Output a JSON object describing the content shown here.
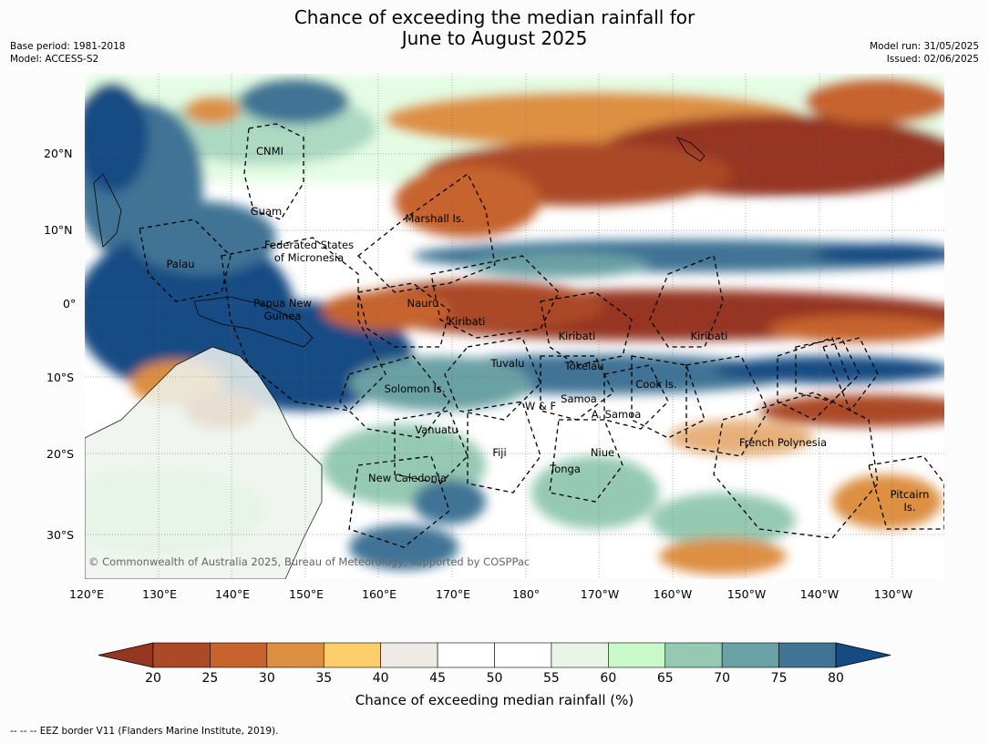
{
  "title_line1": "Chance of exceeding the median rainfall for",
  "title_line2": "June to August 2025",
  "meta_left": [
    "Base period: 1981-2018",
    "Model: ACCESS-S2"
  ],
  "meta_right": [
    "Model run: 31/05/2025",
    "Issued: 02/06/2025"
  ],
  "lat_labels": [
    "20°N",
    "10°N",
    "0°",
    "10°S",
    "20°S",
    "30°S"
  ],
  "lon_labels": [
    "120°E",
    "130°E",
    "140°E",
    "150°E",
    "160°E",
    "170°E",
    "180°",
    "170°W",
    "160°W",
    "150°W",
    "140°W",
    "130°W"
  ],
  "regions": [
    {
      "name": "CNMI"
    },
    {
      "name": "Guam"
    },
    {
      "name": "Marshall Is."
    },
    {
      "name": "Federated States"
    },
    {
      "name": "of Micronesia"
    },
    {
      "name": "Palau"
    },
    {
      "name": "Papua New"
    },
    {
      "name": "Guinea"
    },
    {
      "name": "Nauru"
    },
    {
      "name": "Kiribati"
    },
    {
      "name": "Kiribati"
    },
    {
      "name": "Kiribati"
    },
    {
      "name": "Tuvalu"
    },
    {
      "name": "Tokelau"
    },
    {
      "name": "Solomon Is."
    },
    {
      "name": "Samoa"
    },
    {
      "name": "W & F"
    },
    {
      "name": "A. Samoa"
    },
    {
      "name": "Cook Is."
    },
    {
      "name": "Vanuatu"
    },
    {
      "name": "Fiji"
    },
    {
      "name": "Niue"
    },
    {
      "name": "French Polynesia"
    },
    {
      "name": "Tonga"
    },
    {
      "name": "New Caledonia"
    },
    {
      "name": "Pitcairn"
    },
    {
      "name": "Is."
    }
  ],
  "copyright": "© Commonwealth of Australia 2025, Bureau of Meteorology, supported by COSPPac",
  "colorbar": {
    "label": "Chance of exceeding median rainfall (%)",
    "ticks": [
      "20",
      "25",
      "30",
      "35",
      "40",
      "45",
      "50",
      "55",
      "60",
      "65",
      "70",
      "75",
      "80"
    ],
    "colors": [
      "#ab4a27",
      "#c6632f",
      "#dd8f42",
      "#fccd6a",
      "#efeae3",
      "#ffffff",
      "#ffffff",
      "#e8f5e7",
      "#caf9c9",
      "#95c9b3",
      "#6aa1a4",
      "#417395"
    ],
    "under_color": "#953620",
    "over_color": "#144b83"
  },
  "footer": "-- -- -- EEZ border V11 (Flanders Marine Institute, 2019)."
}
